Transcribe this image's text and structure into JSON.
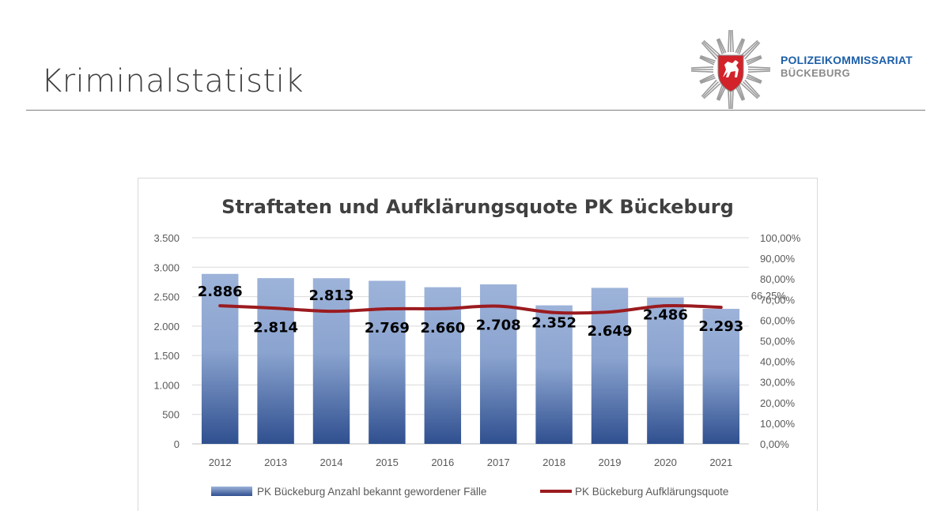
{
  "header": {
    "title": "Kriminalstatistik",
    "brand_line1": "POLIZEIKOMMISSARIAT",
    "brand_line2": "BÜCKEBURG",
    "logo_icon": "police-star-horse-icon",
    "colors": {
      "brand_blue": "#1c5fa8",
      "brand_gray": "#8a8a8a",
      "shield_red": "#d2232a"
    }
  },
  "chart_data": {
    "type": "bar",
    "title": "Straftaten und Aufklärungsquote PK Bückeburg",
    "categories": [
      "2012",
      "2013",
      "2014",
      "2015",
      "2016",
      "2017",
      "2018",
      "2019",
      "2020",
      "2021"
    ],
    "series": [
      {
        "name": "PK Bückeburg Anzahl bekannt gewordener Fälle",
        "type": "bar",
        "axis": "left",
        "values": [
          2886,
          2814,
          2813,
          2769,
          2660,
          2708,
          2352,
          2649,
          2486,
          2293
        ],
        "labels": [
          "2.886",
          "2.814",
          "2.813",
          "2.769",
          "2.660",
          "2.708",
          "2.352",
          "2.649",
          "2.486",
          "2.293"
        ],
        "color_top": "#9db3d9",
        "color_bottom": "#2f4f8f"
      },
      {
        "name": "PK Bückeburg Aufklärungsquote",
        "type": "line",
        "axis": "right",
        "values": [
          67.0,
          65.8,
          64.3,
          65.5,
          65.6,
          66.8,
          63.7,
          64.0,
          67.0,
          66.25
        ],
        "labels": [
          "",
          "",
          "",
          "",
          "",
          "",
          "",
          "",
          "",
          "66,25%"
        ],
        "color": "#9b1b1f"
      }
    ],
    "y_left": {
      "ylim": [
        0,
        3500
      ],
      "ticks": [
        0,
        500,
        1000,
        1500,
        2000,
        2500,
        3000,
        3500
      ],
      "tick_labels": [
        "0",
        "500",
        "1.000",
        "1.500",
        "2.000",
        "2.500",
        "3.000",
        "3.500"
      ]
    },
    "y_right": {
      "ylim": [
        0,
        100
      ],
      "ticks": [
        0,
        10,
        20,
        30,
        40,
        50,
        60,
        70,
        80,
        90,
        100
      ],
      "tick_labels": [
        "0,00%",
        "10,00%",
        "20,00%",
        "30,00%",
        "40,00%",
        "50,00%",
        "60,00%",
        "70,00%",
        "80,00%",
        "90,00%",
        "100,00%"
      ]
    },
    "grid": true,
    "legend_position": "bottom"
  }
}
